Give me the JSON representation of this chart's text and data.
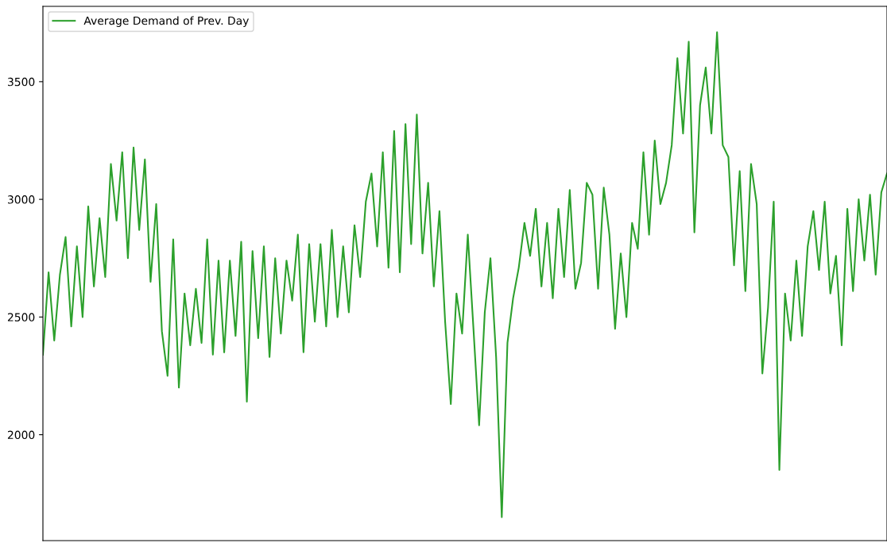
{
  "chart_data": {
    "type": "line",
    "categories": [
      null,
      null,
      null,
      null,
      null,
      null,
      null,
      null,
      null,
      null,
      null,
      null,
      null,
      null,
      null,
      null,
      null,
      null,
      null,
      null,
      null,
      null,
      null,
      null,
      null,
      null,
      null,
      null,
      null,
      null,
      null,
      null,
      null,
      null,
      null,
      null,
      null,
      null,
      null,
      null,
      null,
      null,
      null,
      null,
      null,
      null,
      null,
      null,
      null,
      null,
      null,
      null,
      null,
      null,
      null,
      null,
      null,
      null,
      null,
      null,
      null,
      null,
      null,
      null,
      null,
      null,
      null,
      null,
      null,
      null,
      null,
      null,
      null,
      null,
      null,
      null,
      null,
      null,
      null,
      null,
      null,
      null,
      null,
      null,
      null,
      null,
      null,
      null,
      null,
      null,
      null,
      null,
      null,
      null,
      null,
      null,
      null,
      null,
      null,
      null,
      null,
      null,
      null,
      null,
      null,
      null,
      null,
      null,
      null,
      null,
      null,
      null,
      null,
      null,
      null,
      null,
      null,
      null,
      null,
      null,
      null,
      null,
      null,
      null,
      null,
      null,
      null,
      null,
      null,
      null,
      null,
      null,
      null,
      null,
      null,
      null,
      null,
      null,
      null,
      null,
      null,
      null,
      null,
      null,
      null,
      null,
      null,
      null,
      null,
      null
    ],
    "series": [
      {
        "name": "Average Demand of Prev. Day",
        "color": "#2ca02c",
        "values": [
          2340,
          2690,
          2400,
          2680,
          2840,
          2460,
          2800,
          2500,
          2970,
          2630,
          2920,
          2670,
          3150,
          2910,
          3200,
          2750,
          3220,
          2870,
          3170,
          2650,
          2980,
          2440,
          2250,
          2830,
          2200,
          2600,
          2380,
          2620,
          2390,
          2830,
          2340,
          2740,
          2350,
          2740,
          2420,
          2820,
          2140,
          2780,
          2410,
          2800,
          2330,
          2750,
          2430,
          2740,
          2570,
          2850,
          2350,
          2810,
          2480,
          2810,
          2460,
          2870,
          2500,
          2800,
          2520,
          2890,
          2670,
          2990,
          3110,
          2800,
          3200,
          2710,
          3290,
          2690,
          3320,
          2810,
          3360,
          2770,
          3070,
          2630,
          2950,
          2480,
          2130,
          2600,
          2430,
          2850,
          2450,
          2040,
          2520,
          2750,
          2330,
          1650,
          2390,
          2580,
          2710,
          2900,
          2760,
          2960,
          2630,
          2900,
          2580,
          2960,
          2670,
          3040,
          2620,
          2730,
          3070,
          3020,
          2620,
          3050,
          2850,
          2450,
          2770,
          2500,
          2900,
          2790,
          3200,
          2850,
          3250,
          2980,
          3070,
          3230,
          3600,
          3280,
          3670,
          2860,
          3400,
          3560,
          3280,
          3710,
          3230,
          3180,
          2720,
          3120,
          2610,
          3150,
          2980,
          2260,
          2540,
          2990,
          1850,
          2600,
          2400,
          2740,
          2420,
          2800,
          2950,
          2700,
          2990,
          2600,
          2760,
          2380,
          2960,
          2610,
          3000,
          2740,
          3020,
          2680,
          3030,
          3110
        ]
      }
    ],
    "ylim": [
      1550,
      3820
    ],
    "yticks": [
      2000,
      2500,
      3000,
      3500
    ],
    "legend": "top left",
    "tick_labels": "y"
  }
}
